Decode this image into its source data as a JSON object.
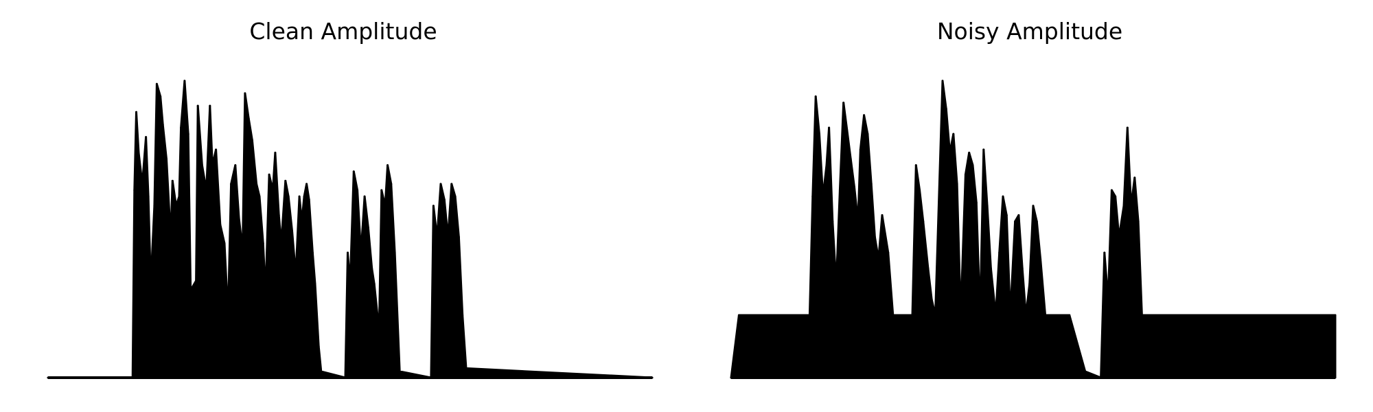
{
  "chart_data": [
    {
      "type": "area",
      "title": "Clean Amplitude",
      "xlabel": "",
      "ylabel": "",
      "grid": false,
      "axes_visible": false,
      "ylim": [
        0,
        1
      ],
      "color": "#000000",
      "segments": [
        [
          0.0,
          0.0
        ],
        [
          0.14,
          0.0
        ],
        [
          0.143,
          0.6
        ],
        [
          0.146,
          0.85
        ],
        [
          0.15,
          0.72
        ],
        [
          0.156,
          0.62
        ],
        [
          0.162,
          0.77
        ],
        [
          0.166,
          0.58
        ],
        [
          0.17,
          0.3
        ],
        [
          0.176,
          0.55
        ],
        [
          0.18,
          0.94
        ],
        [
          0.186,
          0.9
        ],
        [
          0.19,
          0.81
        ],
        [
          0.196,
          0.7
        ],
        [
          0.203,
          0.45
        ],
        [
          0.206,
          0.63
        ],
        [
          0.212,
          0.55
        ],
        [
          0.217,
          0.58
        ],
        [
          0.22,
          0.8
        ],
        [
          0.226,
          0.95
        ],
        [
          0.232,
          0.78
        ],
        [
          0.236,
          0.28
        ],
        [
          0.245,
          0.31
        ],
        [
          0.248,
          0.87
        ],
        [
          0.255,
          0.68
        ],
        [
          0.262,
          0.6
        ],
        [
          0.268,
          0.87
        ],
        [
          0.272,
          0.68
        ],
        [
          0.278,
          0.73
        ],
        [
          0.285,
          0.49
        ],
        [
          0.292,
          0.43
        ],
        [
          0.298,
          0.2
        ],
        [
          0.303,
          0.62
        ],
        [
          0.31,
          0.68
        ],
        [
          0.316,
          0.51
        ],
        [
          0.322,
          0.41
        ],
        [
          0.326,
          0.91
        ],
        [
          0.332,
          0.83
        ],
        [
          0.338,
          0.76
        ],
        [
          0.345,
          0.62
        ],
        [
          0.35,
          0.58
        ],
        [
          0.356,
          0.43
        ],
        [
          0.36,
          0.27
        ],
        [
          0.366,
          0.65
        ],
        [
          0.372,
          0.6
        ],
        [
          0.376,
          0.72
        ],
        [
          0.382,
          0.52
        ],
        [
          0.386,
          0.43
        ],
        [
          0.393,
          0.63
        ],
        [
          0.398,
          0.58
        ],
        [
          0.404,
          0.47
        ],
        [
          0.41,
          0.33
        ],
        [
          0.416,
          0.58
        ],
        [
          0.42,
          0.5
        ],
        [
          0.424,
          0.58
        ],
        [
          0.428,
          0.62
        ],
        [
          0.432,
          0.57
        ],
        [
          0.438,
          0.4
        ],
        [
          0.442,
          0.3
        ],
        [
          0.448,
          0.1
        ],
        [
          0.452,
          0.02
        ],
        [
          0.492,
          0.0
        ],
        [
          0.496,
          0.4
        ],
        [
          0.5,
          0.3
        ],
        [
          0.506,
          0.66
        ],
        [
          0.512,
          0.6
        ],
        [
          0.518,
          0.4
        ],
        [
          0.524,
          0.58
        ],
        [
          0.53,
          0.48
        ],
        [
          0.536,
          0.35
        ],
        [
          0.54,
          0.3
        ],
        [
          0.548,
          0.15
        ],
        [
          0.552,
          0.6
        ],
        [
          0.558,
          0.55
        ],
        [
          0.562,
          0.68
        ],
        [
          0.568,
          0.62
        ],
        [
          0.574,
          0.4
        ],
        [
          0.582,
          0.02
        ],
        [
          0.634,
          0.0
        ],
        [
          0.638,
          0.55
        ],
        [
          0.644,
          0.45
        ],
        [
          0.65,
          0.62
        ],
        [
          0.656,
          0.57
        ],
        [
          0.662,
          0.45
        ],
        [
          0.668,
          0.62
        ],
        [
          0.674,
          0.58
        ],
        [
          0.68,
          0.45
        ],
        [
          0.686,
          0.2
        ],
        [
          0.692,
          0.03
        ],
        [
          1.0,
          0.0
        ]
      ]
    },
    {
      "type": "area",
      "title": "Noisy Amplitude",
      "xlabel": "",
      "ylabel": "",
      "grid": false,
      "axes_visible": false,
      "ylim": [
        0,
        1
      ],
      "color": "#000000",
      "segments": [
        [
          0.0,
          0.0
        ],
        [
          0.013,
          0.2
        ],
        [
          0.06,
          0.2
        ],
        [
          0.08,
          0.2
        ],
        [
          0.13,
          0.2
        ],
        [
          0.135,
          0.58
        ],
        [
          0.14,
          0.9
        ],
        [
          0.146,
          0.78
        ],
        [
          0.152,
          0.58
        ],
        [
          0.158,
          0.68
        ],
        [
          0.162,
          0.8
        ],
        [
          0.168,
          0.5
        ],
        [
          0.174,
          0.3
        ],
        [
          0.18,
          0.6
        ],
        [
          0.186,
          0.88
        ],
        [
          0.192,
          0.79
        ],
        [
          0.198,
          0.7
        ],
        [
          0.204,
          0.61
        ],
        [
          0.21,
          0.5
        ],
        [
          0.214,
          0.73
        ],
        [
          0.22,
          0.84
        ],
        [
          0.226,
          0.78
        ],
        [
          0.232,
          0.62
        ],
        [
          0.238,
          0.45
        ],
        [
          0.244,
          0.38
        ],
        [
          0.25,
          0.52
        ],
        [
          0.26,
          0.4
        ],
        [
          0.268,
          0.2
        ],
        [
          0.3,
          0.2
        ],
        [
          0.306,
          0.68
        ],
        [
          0.312,
          0.6
        ],
        [
          0.318,
          0.5
        ],
        [
          0.326,
          0.35
        ],
        [
          0.332,
          0.25
        ],
        [
          0.338,
          0.2
        ],
        [
          0.342,
          0.45
        ],
        [
          0.35,
          0.95
        ],
        [
          0.356,
          0.86
        ],
        [
          0.362,
          0.72
        ],
        [
          0.368,
          0.78
        ],
        [
          0.374,
          0.62
        ],
        [
          0.38,
          0.2
        ],
        [
          0.388,
          0.65
        ],
        [
          0.394,
          0.72
        ],
        [
          0.4,
          0.68
        ],
        [
          0.406,
          0.56
        ],
        [
          0.412,
          0.2
        ],
        [
          0.418,
          0.73
        ],
        [
          0.424,
          0.55
        ],
        [
          0.43,
          0.35
        ],
        [
          0.438,
          0.2
        ],
        [
          0.444,
          0.4
        ],
        [
          0.45,
          0.58
        ],
        [
          0.456,
          0.52
        ],
        [
          0.462,
          0.2
        ],
        [
          0.47,
          0.5
        ],
        [
          0.476,
          0.52
        ],
        [
          0.482,
          0.35
        ],
        [
          0.488,
          0.2
        ],
        [
          0.494,
          0.3
        ],
        [
          0.5,
          0.55
        ],
        [
          0.506,
          0.5
        ],
        [
          0.512,
          0.38
        ],
        [
          0.52,
          0.2
        ],
        [
          0.56,
          0.2
        ],
        [
          0.586,
          0.02
        ],
        [
          0.612,
          0.0
        ],
        [
          0.618,
          0.4
        ],
        [
          0.624,
          0.25
        ],
        [
          0.63,
          0.6
        ],
        [
          0.636,
          0.58
        ],
        [
          0.642,
          0.45
        ],
        [
          0.65,
          0.55
        ],
        [
          0.656,
          0.8
        ],
        [
          0.662,
          0.55
        ],
        [
          0.668,
          0.64
        ],
        [
          0.674,
          0.5
        ],
        [
          0.68,
          0.2
        ],
        [
          0.8,
          0.2
        ],
        [
          0.9,
          0.2
        ],
        [
          1.0,
          0.2
        ]
      ]
    }
  ]
}
